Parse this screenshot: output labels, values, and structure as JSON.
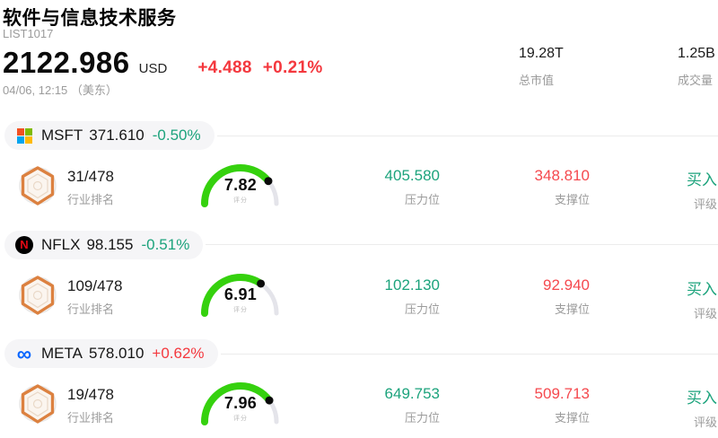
{
  "header": {
    "title": "软件与信息技术服务",
    "code": "LIST1017",
    "price": "2122.986",
    "currency": "USD",
    "change": "+4.488",
    "change_pct": "+0.21%",
    "datetime": "04/06, 12:15 （美东）",
    "market_cap": {
      "value": "19.28T",
      "label": "总市值"
    },
    "volume": {
      "value": "1.25B",
      "label": "成交量"
    }
  },
  "labels": {
    "rank": "行业排名",
    "score": "评分",
    "resistance": "压力位",
    "support": "支撑位",
    "rating": "评级"
  },
  "stocks": [
    {
      "symbol": "MSFT",
      "price": "371.610",
      "change_pct": "-0.50%",
      "icon": "microsoft-logo",
      "rank": "31/478",
      "score": "7.82",
      "resistance": "405.580",
      "support": "348.810",
      "rating": "买入"
    },
    {
      "symbol": "NFLX",
      "price": "98.155",
      "change_pct": "-0.51%",
      "icon": "netflix-logo",
      "rank": "109/478",
      "score": "6.91",
      "resistance": "102.130",
      "support": "92.940",
      "rating": "买入"
    },
    {
      "symbol": "META",
      "price": "578.010",
      "change_pct": "+0.62%",
      "icon": "meta-logo",
      "rank": "19/478",
      "score": "7.96",
      "resistance": "649.753",
      "support": "509.713",
      "rating": "买入"
    }
  ],
  "colors": {
    "accent_red": "#F4383E",
    "teal": "#1CA37C",
    "support_red": "#F5494E",
    "gauge_green": "#35D10E",
    "gauge_track": "#E4E4EA",
    "pill_bg": "#F5F5F7",
    "badge_orange": "#DC8140"
  }
}
